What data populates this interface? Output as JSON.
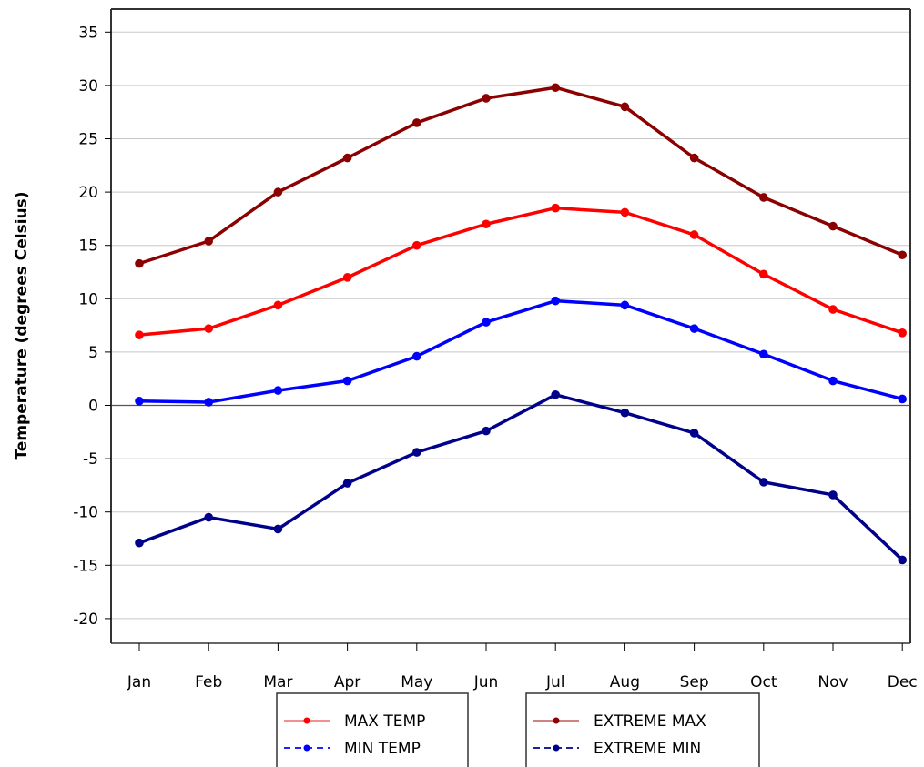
{
  "chart_data": {
    "type": "line",
    "title": "",
    "xlabel": "",
    "ylabel": "Temperature (degrees Celsius)",
    "categories": [
      "Jan",
      "Feb",
      "Mar",
      "Apr",
      "May",
      "Jun",
      "Jul",
      "Aug",
      "Sep",
      "Oct",
      "Nov",
      "Dec"
    ],
    "yticks": [
      35,
      30,
      25,
      20,
      15,
      10,
      5,
      0,
      -5,
      -10,
      -15,
      -20
    ],
    "ylim": [
      -22,
      36.5
    ],
    "grid": true,
    "series": [
      {
        "name": "EXTREME MAX",
        "color": "#8b0000",
        "dash": "solid",
        "values": [
          13.3,
          15.4,
          20.0,
          23.2,
          26.5,
          28.8,
          29.8,
          28.0,
          23.2,
          19.5,
          16.8,
          14.1
        ]
      },
      {
        "name": "MAX TEMP",
        "color": "#ff0000",
        "dash": "solid",
        "values": [
          6.6,
          7.2,
          9.4,
          12.0,
          15.0,
          17.0,
          18.5,
          18.1,
          16.0,
          12.3,
          9.0,
          6.8
        ]
      },
      {
        "name": "MIN TEMP",
        "color": "#0000ff",
        "dash": "solid",
        "values": [
          0.4,
          0.3,
          1.4,
          2.3,
          4.6,
          7.8,
          9.8,
          9.4,
          7.2,
          4.8,
          2.3,
          0.6
        ]
      },
      {
        "name": "EXTREME MIN",
        "color": "#00008b",
        "dash": "solid",
        "values": [
          -12.9,
          -10.5,
          -11.6,
          -7.3,
          -4.4,
          -2.4,
          1.0,
          -0.7,
          -2.6,
          -7.2,
          -8.4,
          -14.5
        ]
      }
    ],
    "legend": {
      "placement": "bottom",
      "box1": [
        {
          "label": "MAX TEMP",
          "color": "#ff0000",
          "line_color": "#f08080",
          "dash": "solid"
        },
        {
          "label": "MIN TEMP",
          "color": "#0000ff",
          "line_color": "#0000ff",
          "dash": "dashed"
        }
      ],
      "box2": [
        {
          "label": "EXTREME MAX",
          "color": "#8b0000",
          "line_color": "#c87070",
          "dash": "solid"
        },
        {
          "label": "EXTREME MIN",
          "color": "#00008b",
          "line_color": "#00008b",
          "dash": "dashed"
        }
      ]
    }
  }
}
